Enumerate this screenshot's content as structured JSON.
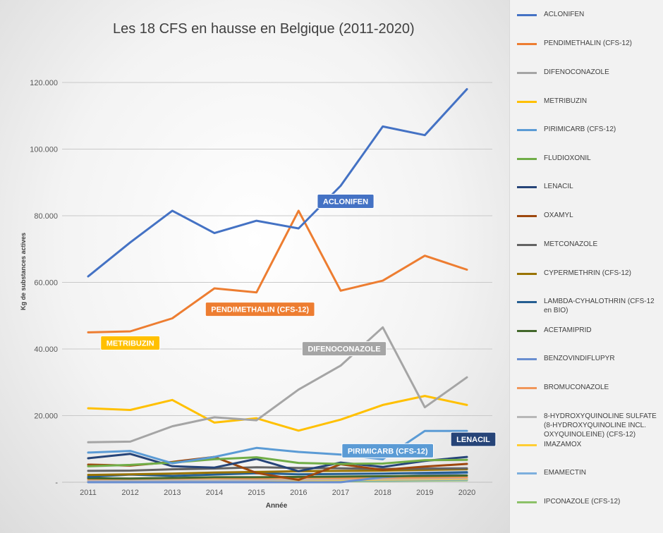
{
  "chart_data": {
    "type": "line",
    "title": "Les 18 CFS en hausse en Belgique (2011-2020)",
    "xlabel": "Année",
    "ylabel": "Kg de substances actives",
    "ylim": [
      0,
      120000
    ],
    "yticks": [
      "-",
      "20.000",
      "40.000",
      "60.000",
      "80.000",
      "100.000",
      "120.000"
    ],
    "ytick_values": [
      0,
      20000,
      40000,
      60000,
      80000,
      100000,
      120000
    ],
    "grid": true,
    "legend_position": "right",
    "categories": [
      "2011",
      "2012",
      "2013",
      "2014",
      "2015",
      "2016",
      "2017",
      "2018",
      "2019",
      "2020"
    ],
    "series": [
      {
        "name": "ACLONIFEN",
        "color": "#4472c4",
        "values": [
          61800,
          72000,
          81500,
          74800,
          78500,
          76200,
          89000,
          106800,
          104200,
          118000
        ]
      },
      {
        "name": "PENDIMETHALIN (CFS-12)",
        "color": "#ed7d31",
        "values": [
          45000,
          45300,
          49200,
          58200,
          57000,
          81500,
          57500,
          60500,
          68000,
          63800
        ]
      },
      {
        "name": "DIFENOCONAZOLE",
        "color": "#a5a5a5",
        "values": [
          12000,
          12200,
          16800,
          19500,
          18600,
          27800,
          35000,
          46500,
          22500,
          31500
        ]
      },
      {
        "name": "METRIBUZIN",
        "color": "#ffc000",
        "values": [
          22200,
          21700,
          24700,
          17900,
          19200,
          15500,
          18800,
          23200,
          25900,
          23200
        ]
      },
      {
        "name": "PIRIMICARB (CFS-12)",
        "color": "#5b9bd5",
        "values": [
          8900,
          9400,
          5700,
          7600,
          10300,
          9100,
          8300,
          6900,
          15400,
          15400
        ]
      },
      {
        "name": "FLUDIOXONIL",
        "color": "#70ad47",
        "values": [
          4800,
          5200,
          5900,
          6900,
          7500,
          5800,
          5500,
          5600,
          6600,
          6700
        ]
      },
      {
        "name": "LENACIL",
        "color": "#264478",
        "values": [
          7200,
          8500,
          4800,
          4400,
          7000,
          3300,
          5900,
          4600,
          6400,
          7600
        ]
      },
      {
        "name": "OXAMYL",
        "color": "#9e480e",
        "values": [
          5300,
          5000,
          6100,
          7600,
          2800,
          700,
          5400,
          3700,
          4700,
          5500
        ]
      },
      {
        "name": "METCONAZOLE",
        "color": "#636363",
        "values": [
          3400,
          3500,
          3900,
          4100,
          4500,
          4300,
          4200,
          4000,
          4100,
          4200
        ]
      },
      {
        "name": "CYPERMETHRIN (CFS-12)",
        "color": "#997300",
        "values": [
          2200,
          2400,
          2600,
          2900,
          3100,
          3300,
          3400,
          3500,
          3700,
          3900
        ]
      },
      {
        "name": "LAMBDA-CYHALOTHRIN (CFS-12 en BIO)",
        "color": "#255e91",
        "values": [
          1600,
          2300,
          1900,
          2300,
          2700,
          2400,
          2500,
          2600,
          2800,
          3000
        ]
      },
      {
        "name": "ACETAMIPRID",
        "color": "#43682b",
        "values": [
          1200,
          1100,
          1300,
          1500,
          1500,
          1600,
          1700,
          1800,
          1900,
          2000
        ]
      },
      {
        "name": "BENZOVINDIFLUPYR",
        "color": "#698ed0",
        "values": [
          0,
          0,
          0,
          0,
          0,
          0,
          0,
          1500,
          2200,
          2800
        ]
      },
      {
        "name": "BROMUCONAZOLE",
        "color": "#f1975a",
        "values": [
          900,
          1000,
          1100,
          1200,
          1100,
          1300,
          1200,
          1300,
          1400,
          1500
        ]
      },
      {
        "name": "8-HYDROXYQUINOLINE SULFATE (8-HYDROXYQUINOLINE INCL. OXYQUINOLEINE) (CFS-12)",
        "color": "#b7b7b7",
        "values": [
          400,
          500,
          600,
          500,
          700,
          800,
          900,
          1000,
          1100,
          1200
        ]
      },
      {
        "name": "IMAZAMOX",
        "color": "#ffcd33",
        "values": [
          300,
          400,
          500,
          600,
          700,
          600,
          700,
          800,
          900,
          1000
        ]
      },
      {
        "name": "EMAMECTIN",
        "color": "#7cafdd",
        "values": [
          200,
          300,
          300,
          400,
          400,
          500,
          500,
          600,
          700,
          800
        ]
      },
      {
        "name": "IPCONAZOLE (CFS-12)",
        "color": "#8cc168",
        "values": [
          100,
          100,
          200,
          200,
          300,
          300,
          300,
          400,
          500,
          600
        ]
      }
    ],
    "annotations": [
      {
        "text": "ACLONIFEN",
        "color": "#4472c4",
        "series": 0
      },
      {
        "text": "PENDIMETHALIN (CFS-12)",
        "color": "#ed7d31",
        "series": 1
      },
      {
        "text": "DIFENOCONAZOLE",
        "color": "#a5a5a5",
        "series": 2
      },
      {
        "text": "METRIBUZIN",
        "color": "#ffc000",
        "series": 3
      },
      {
        "text": "PIRIMICARB (CFS-12)",
        "color": "#5b9bd5",
        "series": 4
      },
      {
        "text": "LENACIL",
        "color": "#264478",
        "series": 6
      }
    ]
  }
}
